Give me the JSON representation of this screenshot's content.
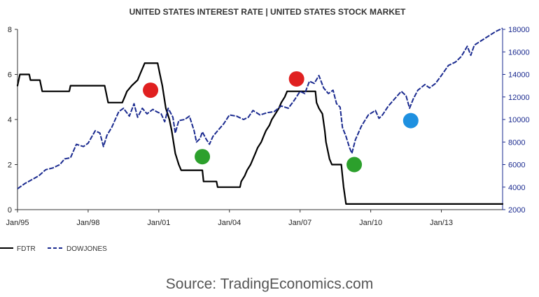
{
  "chart_data": {
    "type": "line",
    "title": "UNITED STATES INTEREST RATE |  UNITED STATES STOCK MARKET",
    "source": "Source: TradingEconomics.com",
    "x_ticks": [
      "Jan/95",
      "Jan/98",
      "Jan/01",
      "Jan/04",
      "Jan/07",
      "Jan/10",
      "Jan/13"
    ],
    "x_tick_years": [
      1995,
      1998,
      2001,
      2004,
      2007,
      2010,
      2013
    ],
    "x_range": [
      1995.0,
      2015.6
    ],
    "left_axis": {
      "ticks": [
        "0",
        "2",
        "4",
        "6",
        "8"
      ],
      "values": [
        0,
        2,
        4,
        6,
        8
      ],
      "range": [
        0,
        8
      ]
    },
    "right_axis": {
      "ticks": [
        "2000",
        "4000",
        "6000",
        "8000",
        "10000",
        "12000",
        "14000",
        "16000",
        "18000"
      ],
      "values": [
        2000,
        4000,
        6000,
        8000,
        10000,
        12000,
        14000,
        16000,
        18000
      ],
      "range": [
        2000,
        18000
      ]
    },
    "series": [
      {
        "name": "FDTR",
        "axis": "left",
        "style": "solid",
        "color": "#000000",
        "points": [
          [
            1995.0,
            5.5
          ],
          [
            1995.1,
            6.0
          ],
          [
            1995.5,
            6.0
          ],
          [
            1995.55,
            5.75
          ],
          [
            1995.95,
            5.75
          ],
          [
            1996.05,
            5.25
          ],
          [
            1997.2,
            5.25
          ],
          [
            1997.25,
            5.5
          ],
          [
            1998.7,
            5.5
          ],
          [
            1998.75,
            5.25
          ],
          [
            1998.85,
            4.75
          ],
          [
            1999.45,
            4.75
          ],
          [
            1999.55,
            5.0
          ],
          [
            1999.65,
            5.25
          ],
          [
            1999.85,
            5.5
          ],
          [
            2000.1,
            5.75
          ],
          [
            2000.2,
            6.0
          ],
          [
            2000.4,
            6.5
          ],
          [
            2000.95,
            6.5
          ],
          [
            2001.05,
            6.0
          ],
          [
            2001.15,
            5.5
          ],
          [
            2001.3,
            4.5
          ],
          [
            2001.45,
            4.0
          ],
          [
            2001.55,
            3.5
          ],
          [
            2001.7,
            2.5
          ],
          [
            2001.85,
            2.0
          ],
          [
            2001.95,
            1.75
          ],
          [
            2002.85,
            1.75
          ],
          [
            2002.9,
            1.25
          ],
          [
            2003.45,
            1.25
          ],
          [
            2003.5,
            1.0
          ],
          [
            2004.45,
            1.0
          ],
          [
            2004.5,
            1.25
          ],
          [
            2004.65,
            1.5
          ],
          [
            2004.75,
            1.75
          ],
          [
            2004.9,
            2.0
          ],
          [
            2005.0,
            2.25
          ],
          [
            2005.1,
            2.5
          ],
          [
            2005.2,
            2.75
          ],
          [
            2005.35,
            3.0
          ],
          [
            2005.45,
            3.25
          ],
          [
            2005.55,
            3.5
          ],
          [
            2005.7,
            3.75
          ],
          [
            2005.8,
            4.0
          ],
          [
            2005.95,
            4.25
          ],
          [
            2006.1,
            4.5
          ],
          [
            2006.2,
            4.75
          ],
          [
            2006.35,
            5.0
          ],
          [
            2006.45,
            5.25
          ],
          [
            2007.65,
            5.25
          ],
          [
            2007.7,
            4.75
          ],
          [
            2007.8,
            4.5
          ],
          [
            2007.95,
            4.25
          ],
          [
            2008.05,
            3.5
          ],
          [
            2008.1,
            3.0
          ],
          [
            2008.25,
            2.25
          ],
          [
            2008.35,
            2.0
          ],
          [
            2008.75,
            2.0
          ],
          [
            2008.8,
            1.5
          ],
          [
            2008.85,
            1.0
          ],
          [
            2008.95,
            0.25
          ],
          [
            2015.6,
            0.25
          ]
        ]
      },
      {
        "name": "DOWJONES",
        "axis": "right",
        "style": "dashed",
        "color": "#1a2a8f",
        "points": [
          [
            1995.0,
            3850
          ],
          [
            1995.3,
            4300
          ],
          [
            1995.6,
            4650
          ],
          [
            1995.9,
            5000
          ],
          [
            1996.2,
            5550
          ],
          [
            1996.5,
            5700
          ],
          [
            1996.8,
            6000
          ],
          [
            1997.0,
            6500
          ],
          [
            1997.25,
            6600
          ],
          [
            1997.5,
            7800
          ],
          [
            1997.8,
            7600
          ],
          [
            1998.0,
            7900
          ],
          [
            1998.3,
            9000
          ],
          [
            1998.5,
            8800
          ],
          [
            1998.65,
            7600
          ],
          [
            1998.8,
            8600
          ],
          [
            1999.0,
            9300
          ],
          [
            1999.3,
            10700
          ],
          [
            1999.5,
            11000
          ],
          [
            1999.75,
            10300
          ],
          [
            1999.95,
            11400
          ],
          [
            2000.1,
            10200
          ],
          [
            2000.3,
            11000
          ],
          [
            2000.5,
            10500
          ],
          [
            2000.75,
            10900
          ],
          [
            2000.9,
            10700
          ],
          [
            2001.1,
            10500
          ],
          [
            2001.25,
            9800
          ],
          [
            2001.4,
            11000
          ],
          [
            2001.6,
            10200
          ],
          [
            2001.7,
            8800
          ],
          [
            2001.85,
            9900
          ],
          [
            2002.1,
            10000
          ],
          [
            2002.3,
            10300
          ],
          [
            2002.5,
            9000
          ],
          [
            2002.6,
            8000
          ],
          [
            2002.75,
            8300
          ],
          [
            2002.85,
            8900
          ],
          [
            2003.0,
            8300
          ],
          [
            2003.15,
            7800
          ],
          [
            2003.3,
            8500
          ],
          [
            2003.5,
            9000
          ],
          [
            2003.75,
            9600
          ],
          [
            2004.0,
            10400
          ],
          [
            2004.3,
            10300
          ],
          [
            2004.6,
            10000
          ],
          [
            2004.8,
            10200
          ],
          [
            2005.0,
            10800
          ],
          [
            2005.3,
            10400
          ],
          [
            2005.6,
            10600
          ],
          [
            2005.9,
            10700
          ],
          [
            2006.2,
            11200
          ],
          [
            2006.5,
            11000
          ],
          [
            2006.75,
            11700
          ],
          [
            2007.0,
            12500
          ],
          [
            2007.2,
            12300
          ],
          [
            2007.4,
            13400
          ],
          [
            2007.6,
            13200
          ],
          [
            2007.8,
            13900
          ],
          [
            2008.0,
            12800
          ],
          [
            2008.2,
            12300
          ],
          [
            2008.4,
            12600
          ],
          [
            2008.55,
            11400
          ],
          [
            2008.7,
            11100
          ],
          [
            2008.8,
            9300
          ],
          [
            2008.95,
            8500
          ],
          [
            2009.1,
            7500
          ],
          [
            2009.2,
            7000
          ],
          [
            2009.35,
            8200
          ],
          [
            2009.6,
            9400
          ],
          [
            2009.9,
            10400
          ],
          [
            2010.2,
            10800
          ],
          [
            2010.35,
            10100
          ],
          [
            2010.5,
            10400
          ],
          [
            2010.75,
            11200
          ],
          [
            2011.0,
            11800
          ],
          [
            2011.3,
            12500
          ],
          [
            2011.5,
            12100
          ],
          [
            2011.65,
            11000
          ],
          [
            2011.8,
            11800
          ],
          [
            2012.0,
            12600
          ],
          [
            2012.3,
            13100
          ],
          [
            2012.5,
            12800
          ],
          [
            2012.75,
            13200
          ],
          [
            2013.0,
            13900
          ],
          [
            2013.3,
            14800
          ],
          [
            2013.6,
            15100
          ],
          [
            2013.85,
            15600
          ],
          [
            2014.1,
            16500
          ],
          [
            2014.25,
            15700
          ],
          [
            2014.4,
            16600
          ],
          [
            2014.7,
            17000
          ],
          [
            2015.0,
            17400
          ],
          [
            2015.3,
            17800
          ],
          [
            2015.6,
            18100
          ]
        ]
      }
    ],
    "markers": [
      {
        "color": "#e02020",
        "x": 2000.65,
        "axis": "left",
        "y": 5.3
      },
      {
        "color": "#e02020",
        "x": 2006.85,
        "axis": "left",
        "y": 5.8
      },
      {
        "color": "#2ca02c",
        "x": 2002.85,
        "axis": "left",
        "y": 2.35
      },
      {
        "color": "#2ca02c",
        "x": 2009.3,
        "axis": "left",
        "y": 2.0
      },
      {
        "color": "#1e90e0",
        "x": 2011.7,
        "axis": "left",
        "y": 3.95
      }
    ],
    "legend": {
      "placement": "bottom-left",
      "entries": [
        {
          "label": "FDTR",
          "style": "solid"
        },
        {
          "label": "DOWJONES",
          "style": "dashed"
        }
      ]
    }
  },
  "colors": {
    "fdtr": "#000000",
    "dow": "#1a2a8f",
    "axis": "#333333",
    "left_tick_text": "#222222",
    "right_tick_text": "#1a2a8f"
  }
}
